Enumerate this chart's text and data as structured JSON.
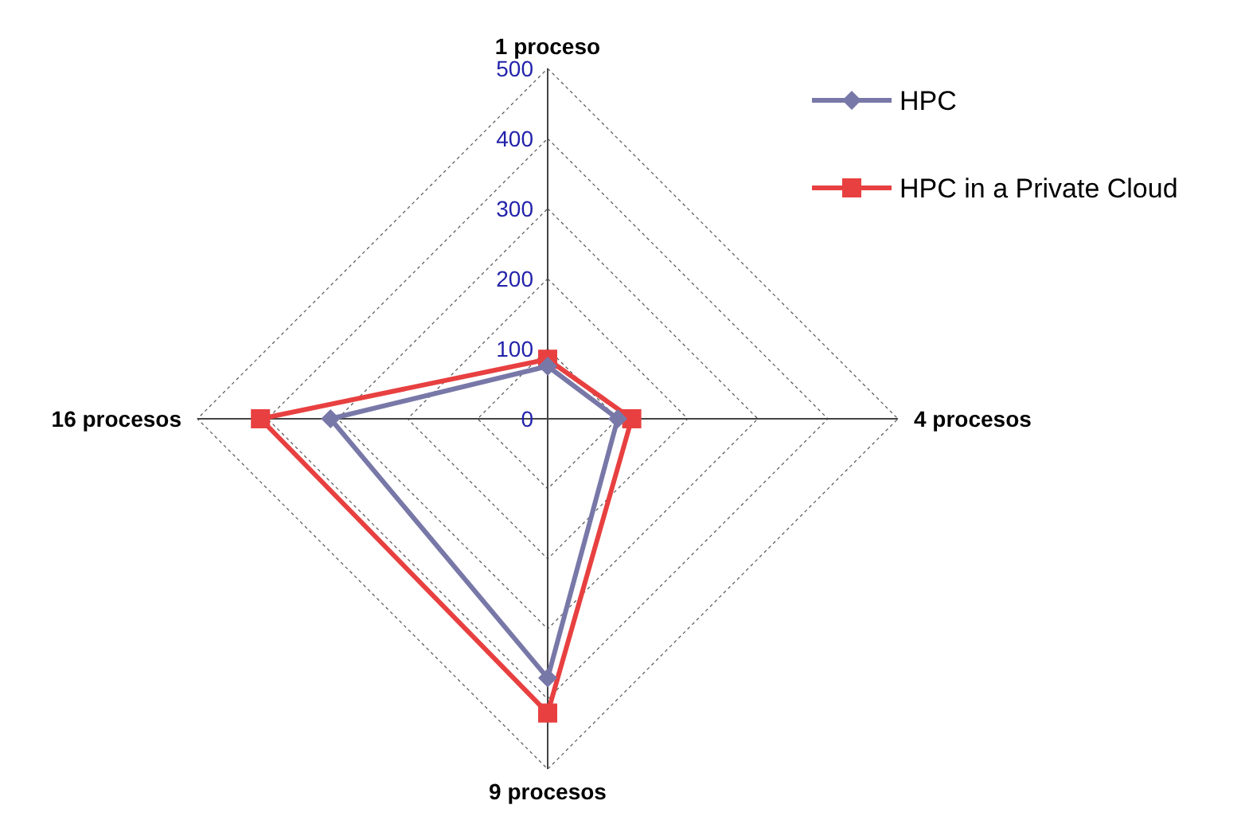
{
  "chart_data": {
    "type": "radar",
    "categories": [
      "1 proceso",
      "4 procesos",
      "9 procesos",
      "16 procesos"
    ],
    "series": [
      {
        "name": "HPC",
        "color": "#7878a8",
        "values": [
          75,
          100,
          370,
          310
        ],
        "marker": "diamond"
      },
      {
        "name": "HPC in a Private Cloud",
        "color": "#e84040",
        "values": [
          85,
          120,
          420,
          410
        ],
        "marker": "square"
      }
    ],
    "ylim": [
      0,
      500
    ],
    "yticks": [
      0,
      100,
      200,
      300,
      400,
      500
    ],
    "grid": true,
    "legend": "top right"
  }
}
